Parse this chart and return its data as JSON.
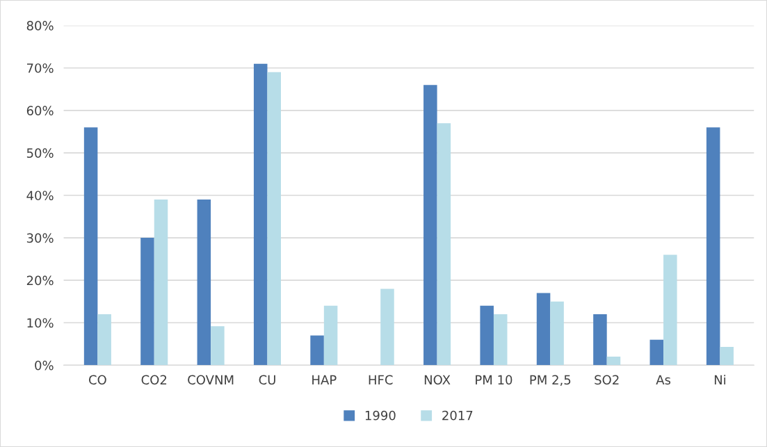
{
  "chart_data": {
    "type": "bar",
    "categories": [
      "CO",
      "CO2",
      "COVNM",
      "CU",
      "HAP",
      "HFC",
      "NOX",
      "PM 10",
      "PM 2,5",
      "SO2",
      "As",
      "Ni"
    ],
    "series": [
      {
        "name": "1990",
        "color": "#4f81bd",
        "values": [
          56,
          30,
          39,
          71,
          7,
          0,
          66,
          14,
          17,
          12,
          6,
          56
        ]
      },
      {
        "name": "2017",
        "color": "#b7dde8",
        "values": [
          12,
          39,
          9.2,
          69,
          14,
          18,
          57,
          12,
          15,
          2,
          26,
          4.3
        ]
      }
    ],
    "ylim": [
      0,
      80
    ],
    "yticks": [
      {
        "value": 0,
        "label": "0%"
      },
      {
        "value": 10,
        "label": "10%"
      },
      {
        "value": 20,
        "label": "20%"
      },
      {
        "value": 30,
        "label": "30%"
      },
      {
        "value": 40,
        "label": "40%"
      },
      {
        "value": 50,
        "label": "50%"
      },
      {
        "value": 60,
        "label": "60%"
      },
      {
        "value": 70,
        "label": "70%"
      },
      {
        "value": 80,
        "label": "80%"
      }
    ],
    "grid": "y",
    "legend": "bottom"
  }
}
